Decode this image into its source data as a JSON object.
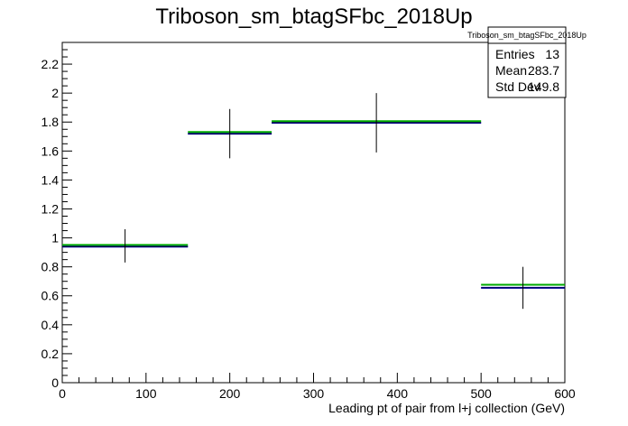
{
  "chart_data": {
    "type": "histogram",
    "title": "Triboson_sm_btagSFbc_2018Up",
    "xlabel": "Leading pt of pair from l+j collection (GeV)",
    "ylabel": "",
    "xlim": [
      0,
      600
    ],
    "ylim": [
      0,
      2.35
    ],
    "x_ticks": [
      "0",
      "100",
      "200",
      "300",
      "400",
      "500",
      "600"
    ],
    "y_ticks": [
      "0",
      "0.2",
      "0.4",
      "0.6",
      "0.8",
      "1",
      "1.2",
      "1.4",
      "1.6",
      "1.8",
      "2",
      "2.2"
    ],
    "bins": [
      {
        "x_low": 0,
        "x_high": 150,
        "value": 0.94,
        "err_low": 0.83,
        "err_high": 1.06
      },
      {
        "x_low": 150,
        "x_high": 250,
        "value": 1.72,
        "err_low": 1.55,
        "err_high": 1.89
      },
      {
        "x_low": 250,
        "x_high": 500,
        "value": 1.795,
        "err_low": 1.59,
        "err_high": 2.0
      },
      {
        "x_low": 500,
        "x_high": 600,
        "value": 0.655,
        "err_low": 0.51,
        "err_high": 0.8
      }
    ],
    "green_values": [
      0.945,
      1.725,
      1.8,
      0.67
    ],
    "colors": {
      "nominal": "#0000ff",
      "variation": "#00aa00",
      "error": "#000000"
    },
    "grid": false,
    "legend_position": "top-right",
    "stats": {
      "title": "Triboson_sm_btagSFbc_2018Up",
      "rows": [
        {
          "label": "Entries",
          "value": "13"
        },
        {
          "label": "Mean",
          "value": "283.7"
        },
        {
          "label": "Std Dev",
          "value": "149.8"
        }
      ]
    }
  }
}
